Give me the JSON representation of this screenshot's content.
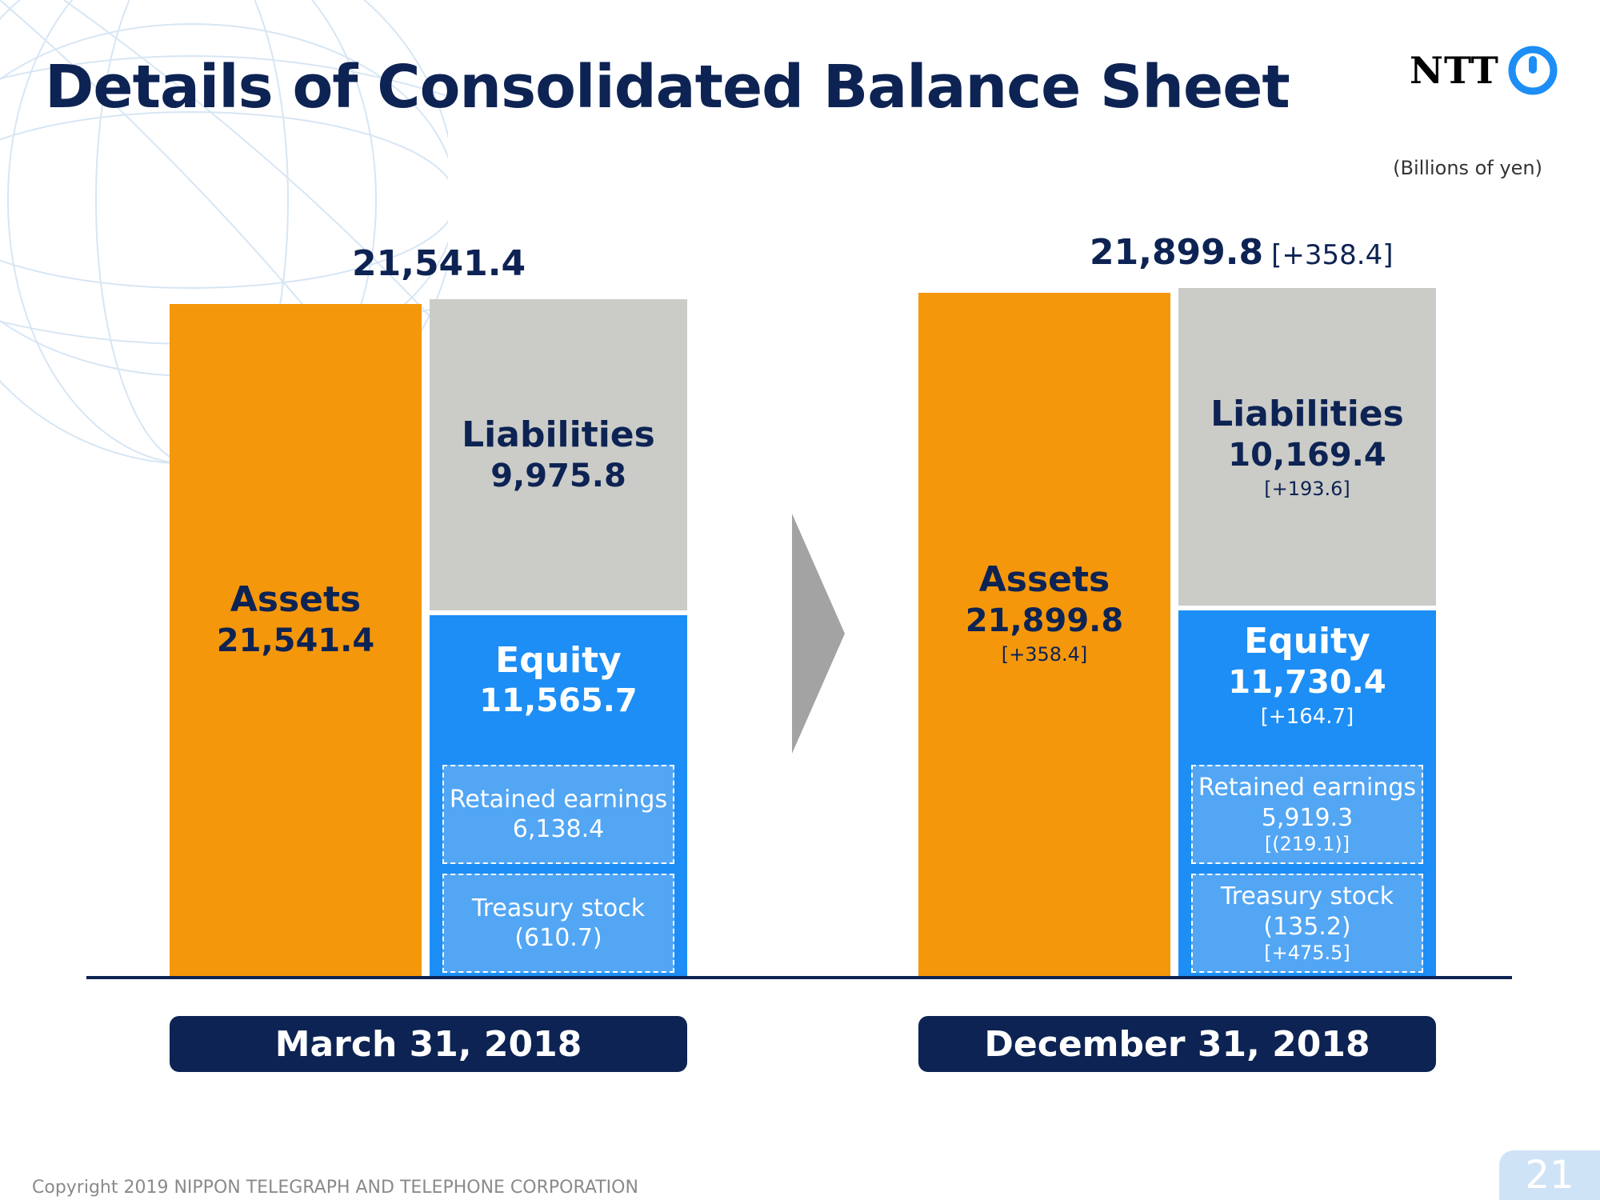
{
  "header": {
    "title": "Details of Consolidated Balance Sheet",
    "logo_text": "NTT",
    "unit_note": "(Billions of yen)"
  },
  "colors": {
    "assets": "#f5970b",
    "liabilities": "#cbccc8",
    "equity": "#1c8ef5",
    "dark_navy": "#0d2353"
  },
  "chart_data": {
    "type": "bar",
    "stacked": true,
    "categories": [
      "March 31, 2018",
      "December 31, 2018"
    ],
    "periods": [
      {
        "date_label": "March 31, 2018",
        "total": 21541.4,
        "total_label": "21,541.4",
        "total_change": "",
        "assets": {
          "name": "Assets",
          "value": 21541.4,
          "label": "21,541.4",
          "change": ""
        },
        "liabilities": {
          "name": "Liabilities",
          "value": 9975.8,
          "label": "9,975.8",
          "change": ""
        },
        "equity": {
          "name": "Equity",
          "value": 11565.7,
          "label": "11,565.7",
          "change": ""
        },
        "retained_earnings": {
          "name": "Retained earnings",
          "value": 6138.4,
          "label": "6,138.4",
          "change": ""
        },
        "treasury_stock": {
          "name": "Treasury stock",
          "value": -610.7,
          "label": "(610.7)",
          "change": ""
        }
      },
      {
        "date_label": "December 31, 2018",
        "total": 21899.8,
        "total_label": "21,899.8",
        "total_change": "[+358.4]",
        "assets": {
          "name": "Assets",
          "value": 21899.8,
          "label": "21,899.8",
          "change": "[+358.4]"
        },
        "liabilities": {
          "name": "Liabilities",
          "value": 10169.4,
          "label": "10,169.4",
          "change": "[+193.6]"
        },
        "equity": {
          "name": "Equity",
          "value": 11730.4,
          "label": "11,730.4",
          "change": "[+164.7]"
        },
        "retained_earnings": {
          "name": "Retained earnings",
          "value": 5919.3,
          "label": "5,919.3",
          "change": "[(219.1)]"
        },
        "treasury_stock": {
          "name": "Treasury stock",
          "value": -135.2,
          "label": "(135.2)",
          "change": "[+475.5]"
        }
      }
    ]
  },
  "footer": {
    "copyright": "Copyright 2019 NIPPON TELEGRAPH AND TELEPHONE CORPORATION",
    "page_number": "21"
  }
}
